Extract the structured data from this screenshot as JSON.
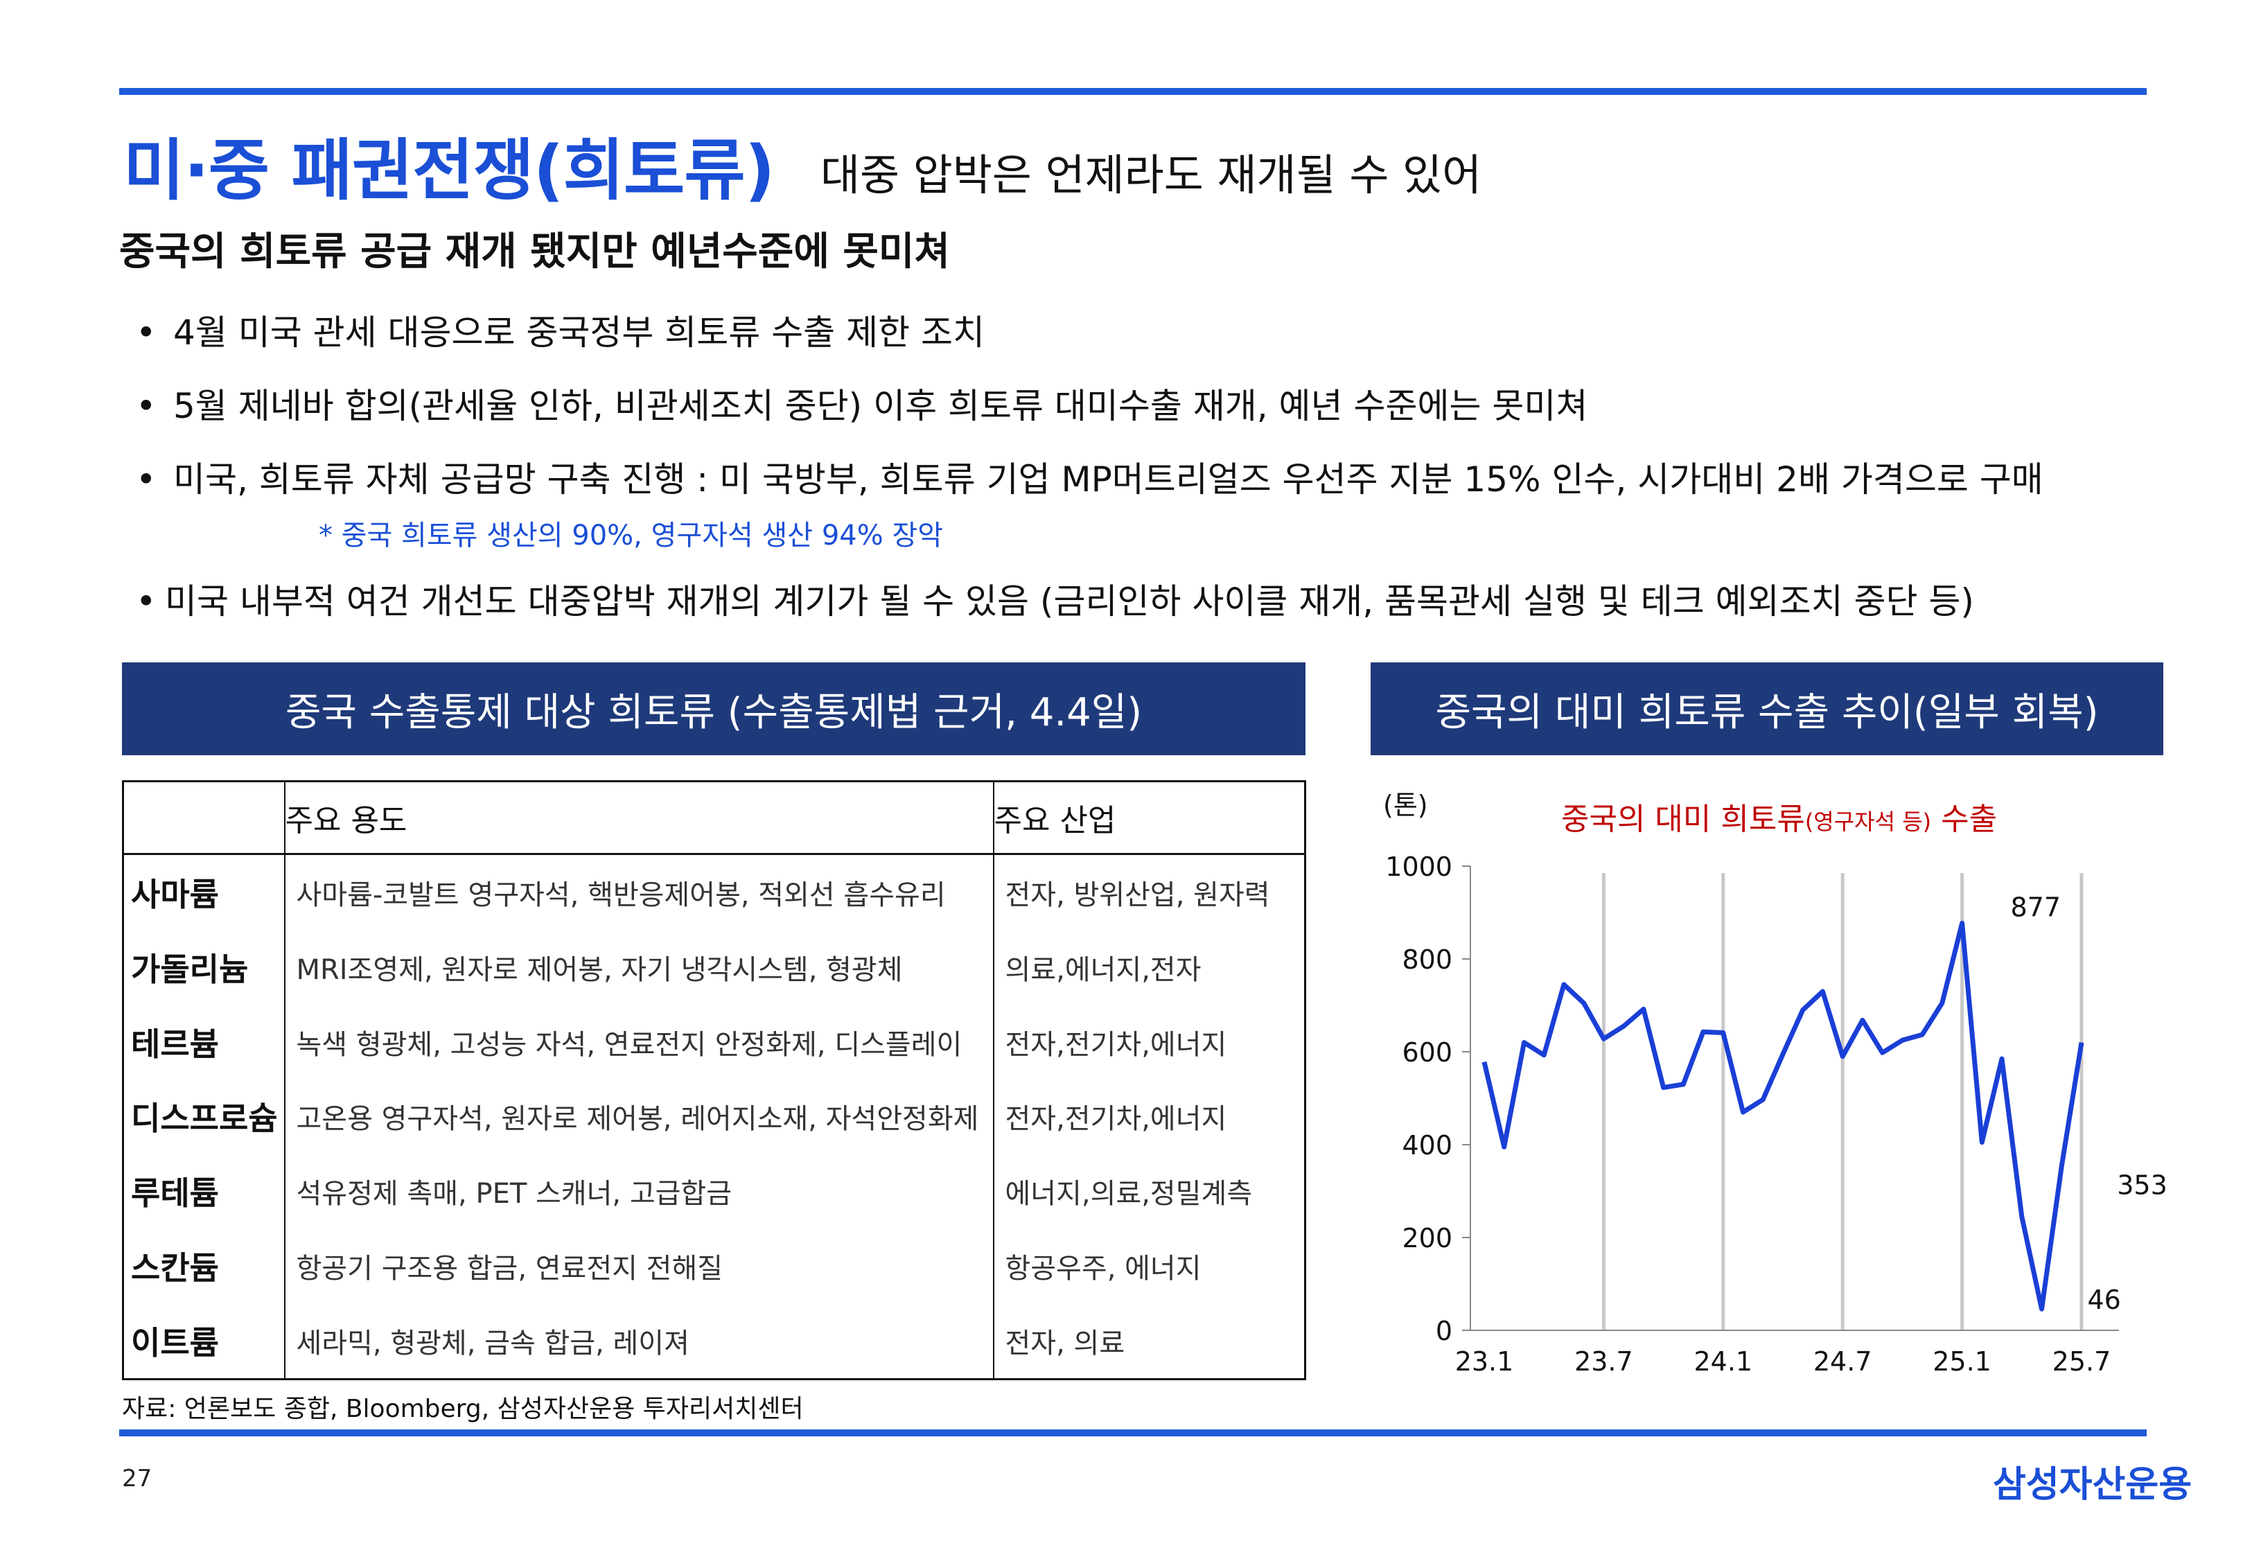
{
  "header": {
    "title": "미·중 패권전쟁(희토류)",
    "subtitle": "대중 압박은 언제라도 재개될 수 있어"
  },
  "headline": "중국의 희토류 공급 재개 됐지만 예년수준에 못미쳐",
  "bullets": {
    "marker": "•",
    "b1": "4월 미국 관세 대응으로 중국정부 희토류 수출 제한 조치",
    "b2": "5월 제네바 합의(관세율 인하, 비관세조치 중단) 이후 희토류 대미수출 재개, 예년 수준에는 못미쳐",
    "b3": "미국, 희토류 자체 공급망 구축 진행 : 미 국방부, 희토류 기업 MP머트리얼즈 우선주 지분 15% 인수, 시가대비 2배 가격으로 구매",
    "note": "* 중국 희토류 생산의 90%, 영구자석 생산 94% 장악",
    "b4": "미국 내부적 여건 개선도 대중압박 재개의 계기가 될 수 있음  (금리인하 사이클 재개, 품목관세 실행 및 테크 예외조치 중단  등)"
  },
  "left_panel": {
    "banner": "중국 수출통제 대상 희토류 (수출통제법 근거, 4.4일)",
    "headers": {
      "name": "",
      "use": "주요 용도",
      "industry": "주요 산업"
    },
    "rows": [
      {
        "name": "사마륨",
        "use": "사마륨-코발트 영구자석, 핵반응제어봉, 적외선 흡수유리",
        "industry": "전자, 방위산업, 원자력"
      },
      {
        "name": "가돌리늄",
        "use": "MRI조영제, 원자로 제어봉, 자기 냉각시스템, 형광체",
        "industry": "의료,에너지,전자"
      },
      {
        "name": "테르븀",
        "use": "녹색 형광체, 고성능 자석, 연료전지 안정화제, 디스플레이",
        "industry": "전자,전기차,에너지"
      },
      {
        "name": "디스프로슘",
        "use": "고온용 영구자석, 원자로 제어봉, 레어지소재, 자석안정화제",
        "industry": "전자,전기차,에너지"
      },
      {
        "name": "루테튬",
        "use": "석유정제 촉매, PET 스캐너, 고급합금",
        "industry": "에너지,의료,정밀계측"
      },
      {
        "name": "스칸듐",
        "use": "항공기 구조용 합금, 연료전지 전해질",
        "industry": "항공우주, 에너지"
      },
      {
        "name": "이트륨",
        "use": "세라믹, 형광체, 금속 합금, 레이져",
        "industry": "전자, 의료"
      }
    ]
  },
  "right_panel": {
    "banner": "중국의 대미 희토류 수출 추이(일부 회복)"
  },
  "chart_data": {
    "type": "line",
    "title_main": "중국의 대미 희토류",
    "title_small": "(영구자석 등)",
    "title_tail": " 수출",
    "ylabel": "(톤)",
    "ylim": [
      0,
      1000
    ],
    "yticks": [
      "0",
      "200",
      "400",
      "600",
      "800",
      "1000"
    ],
    "xticks": [
      "23.1",
      "23.7",
      "24.1",
      "24.7",
      "25.1",
      "25.7"
    ],
    "x": [
      "23.1",
      "23.2",
      "23.3",
      "23.4",
      "23.5",
      "23.6",
      "23.7",
      "23.8",
      "23.9",
      "23.10",
      "23.11",
      "23.12",
      "24.1",
      "24.2",
      "24.3",
      "24.4",
      "24.5",
      "24.6",
      "24.7",
      "24.8",
      "24.9",
      "24.10",
      "24.11",
      "24.12",
      "25.1",
      "25.2",
      "25.3",
      "25.4",
      "25.5",
      "25.6",
      "25.7"
    ],
    "series": [
      {
        "values": [
          578,
          395,
          620,
          593,
          745,
          705,
          628,
          655,
          692,
          523,
          530,
          643,
          641,
          470,
          497,
          595,
          690,
          730,
          590,
          668,
          598,
          625,
          637,
          705,
          877,
          405,
          585,
          245,
          46,
          353,
          620
        ],
        "color": "#1a3fd6"
      }
    ],
    "annotations": [
      {
        "label": "877",
        "index": 24
      },
      {
        "label": "353",
        "index": 29
      },
      {
        "label": "46",
        "index": 28
      }
    ],
    "vertical_gridlines_at": [
      "23.7",
      "24.1",
      "24.7",
      "25.1",
      "25.7"
    ],
    "colors": {
      "line": "#1a3fd6",
      "title": "#c00000",
      "grid": "#c8c8c8"
    }
  },
  "source": "자료: 언론보도 종합, Bloomberg, 삼성자산운용 투자리서치센터",
  "page_number": "27",
  "brand": "삼성자산운용"
}
